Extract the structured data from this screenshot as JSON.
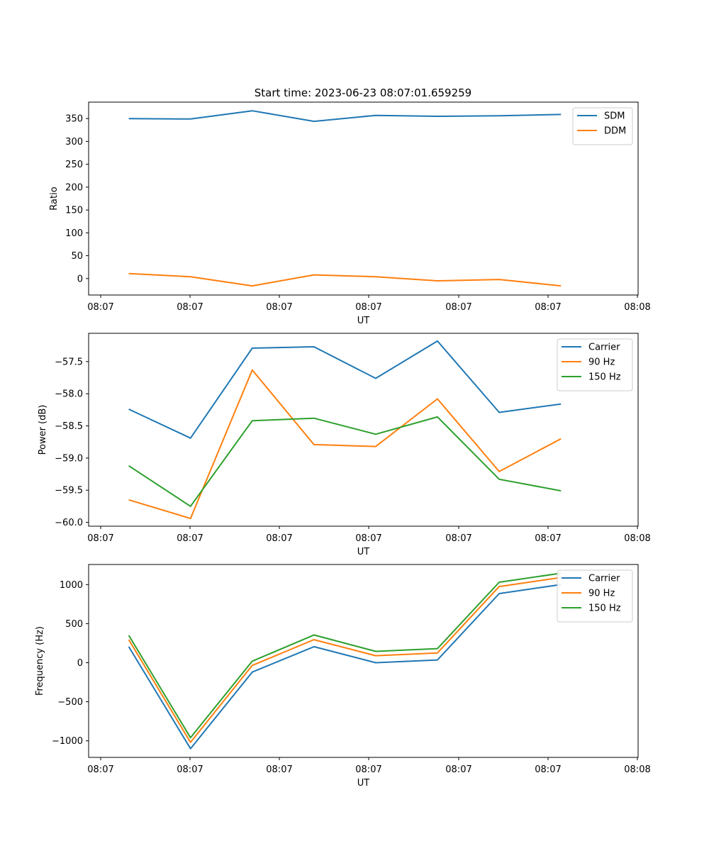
{
  "figure": {
    "title": "Start time: 2023-06-23 08:07:01.659259"
  },
  "chart_data": [
    {
      "type": "line",
      "title": "Start time: 2023-06-23 08:07:01.659259",
      "xlabel": "UT",
      "ylabel": "Ratio",
      "x_tick_labels": [
        "08:07",
        "08:07",
        "08:07",
        "08:07",
        "08:07",
        "08:07",
        "08:08"
      ],
      "x": [
        1,
        2,
        3,
        4,
        5,
        6,
        7,
        8
      ],
      "xlim": [
        0.35,
        9.25
      ],
      "ylim": [
        -36,
        386
      ],
      "y_ticks": [
        0,
        50,
        100,
        150,
        200,
        250,
        300,
        350
      ],
      "legend_position": "top-right",
      "grid": false,
      "series": [
        {
          "name": "SDM",
          "color": "#1f77b4",
          "values": [
            350,
            349,
            367,
            344,
            357,
            355,
            356,
            359
          ]
        },
        {
          "name": "DDM",
          "color": "#ff7f0e",
          "values": [
            11,
            4,
            -16,
            8,
            4,
            -5,
            -2,
            -16
          ]
        }
      ]
    },
    {
      "type": "line",
      "xlabel": "UT",
      "ylabel": "Power (dB)",
      "x_tick_labels": [
        "08:07",
        "08:07",
        "08:07",
        "08:07",
        "08:07",
        "08:07",
        "08:08"
      ],
      "x": [
        1,
        2,
        3,
        4,
        5,
        6,
        7,
        8
      ],
      "xlim": [
        0.35,
        9.25
      ],
      "ylim": [
        -60.06,
        -57.06
      ],
      "y_ticks": [
        -60.0,
        -59.5,
        -59.0,
        -58.5,
        -58.0,
        -57.5
      ],
      "legend_position": "top-right",
      "grid": false,
      "series": [
        {
          "name": "Carrier",
          "color": "#1f77b4",
          "values": [
            -58.24,
            -58.69,
            -57.29,
            -57.27,
            -57.76,
            -57.18,
            -58.29,
            -58.16
          ]
        },
        {
          "name": "90 Hz",
          "color": "#ff7f0e",
          "values": [
            -59.65,
            -59.94,
            -57.63,
            -58.79,
            -58.82,
            -58.08,
            -59.21,
            -58.7
          ]
        },
        {
          "name": "150 Hz",
          "color": "#2ca02c",
          "values": [
            -59.12,
            -59.75,
            -58.42,
            -58.38,
            -58.63,
            -58.36,
            -59.33,
            -59.51
          ]
        }
      ]
    },
    {
      "type": "line",
      "xlabel": "UT",
      "ylabel": "Frequency (Hz)",
      "x_tick_labels": [
        "08:07",
        "08:07",
        "08:07",
        "08:07",
        "08:07",
        "08:07",
        "08:08"
      ],
      "x": [
        1,
        2,
        3,
        4,
        5,
        6,
        7,
        8
      ],
      "xlim": [
        0.35,
        9.25
      ],
      "ylim": [
        -1212,
        1257
      ],
      "y_ticks": [
        -1000,
        -500,
        0,
        500,
        1000
      ],
      "legend_position": "top-right",
      "grid": false,
      "series": [
        {
          "name": "Carrier",
          "color": "#1f77b4",
          "values": [
            205,
            -1100,
            -120,
            205,
            0,
            35,
            885,
            1000
          ]
        },
        {
          "name": "90 Hz",
          "color": "#ff7f0e",
          "values": [
            295,
            -1020,
            -35,
            295,
            90,
            125,
            975,
            1090
          ]
        },
        {
          "name": "150 Hz",
          "color": "#2ca02c",
          "values": [
            350,
            -960,
            20,
            355,
            145,
            180,
            1030,
            1145
          ]
        }
      ]
    }
  ]
}
